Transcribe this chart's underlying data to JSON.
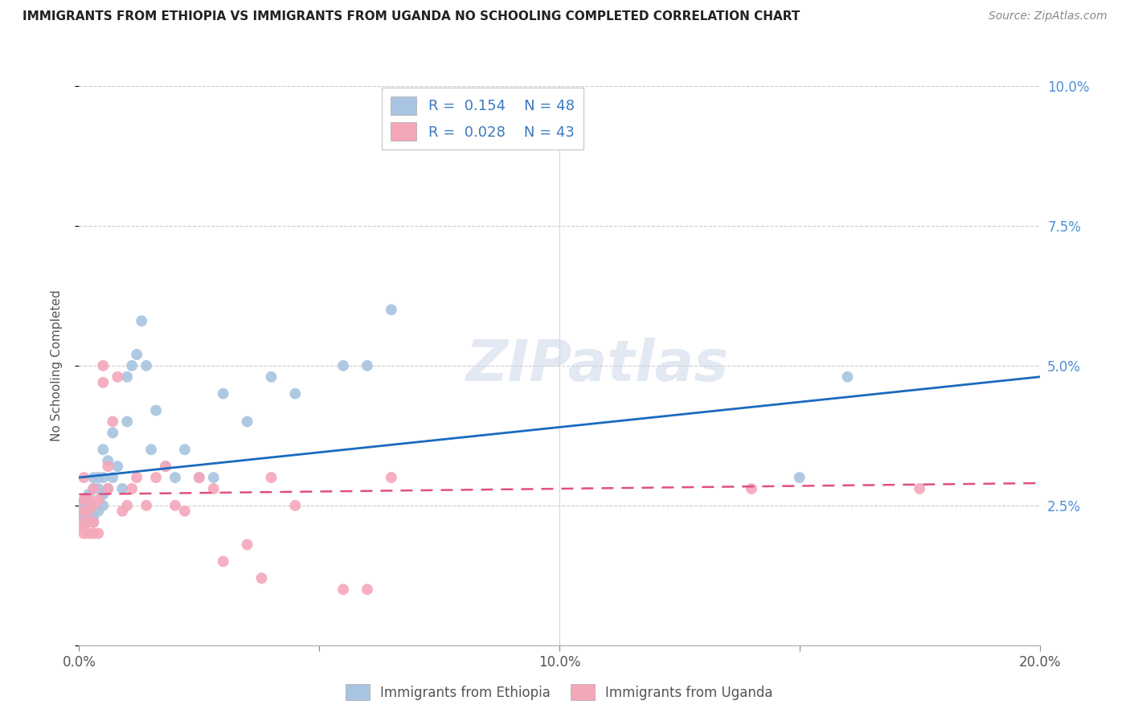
{
  "title": "IMMIGRANTS FROM ETHIOPIA VS IMMIGRANTS FROM UGANDA NO SCHOOLING COMPLETED CORRELATION CHART",
  "source": "Source: ZipAtlas.com",
  "ylabel": "No Schooling Completed",
  "xlim": [
    0.0,
    0.2
  ],
  "ylim": [
    0.0,
    0.1
  ],
  "xticks": [
    0.0,
    0.05,
    0.1,
    0.15,
    0.2
  ],
  "yticks": [
    0.0,
    0.025,
    0.05,
    0.075,
    0.1
  ],
  "xticklabels": [
    "0.0%",
    "",
    "10.0%",
    "",
    "20.0%"
  ],
  "yticklabels": [
    "",
    "2.5%",
    "5.0%",
    "7.5%",
    "10.0%"
  ],
  "ethiopia_R": 0.154,
  "ethiopia_N": 48,
  "uganda_R": 0.028,
  "uganda_N": 43,
  "ethiopia_color": "#a8c4e0",
  "uganda_color": "#f4a7b9",
  "ethiopia_line_color": "#1a6bbf",
  "uganda_line_color": "#e05080",
  "legend_ethiopia": "Immigrants from Ethiopia",
  "legend_uganda": "Immigrants from Uganda",
  "watermark": "ZIPatlas",
  "ethiopia_x": [
    0.001,
    0.001,
    0.001,
    0.001,
    0.001,
    0.002,
    0.002,
    0.002,
    0.002,
    0.003,
    0.003,
    0.003,
    0.003,
    0.004,
    0.004,
    0.004,
    0.005,
    0.005,
    0.005,
    0.005,
    0.006,
    0.006,
    0.007,
    0.007,
    0.008,
    0.009,
    0.01,
    0.01,
    0.011,
    0.012,
    0.013,
    0.014,
    0.015,
    0.016,
    0.018,
    0.02,
    0.022,
    0.025,
    0.028,
    0.03,
    0.035,
    0.04,
    0.045,
    0.055,
    0.06,
    0.065,
    0.15,
    0.16
  ],
  "ethiopia_y": [
    0.023,
    0.023,
    0.024,
    0.025,
    0.026,
    0.022,
    0.023,
    0.025,
    0.027,
    0.022,
    0.023,
    0.03,
    0.028,
    0.024,
    0.028,
    0.03,
    0.025,
    0.027,
    0.03,
    0.035,
    0.028,
    0.033,
    0.03,
    0.038,
    0.032,
    0.028,
    0.04,
    0.048,
    0.05,
    0.052,
    0.058,
    0.05,
    0.035,
    0.042,
    0.032,
    0.03,
    0.035,
    0.03,
    0.03,
    0.045,
    0.04,
    0.048,
    0.045,
    0.05,
    0.05,
    0.06,
    0.03,
    0.048
  ],
  "uganda_x": [
    0.001,
    0.001,
    0.001,
    0.001,
    0.001,
    0.001,
    0.002,
    0.002,
    0.002,
    0.002,
    0.003,
    0.003,
    0.003,
    0.003,
    0.004,
    0.004,
    0.005,
    0.005,
    0.006,
    0.006,
    0.007,
    0.008,
    0.009,
    0.01,
    0.011,
    0.012,
    0.014,
    0.016,
    0.018,
    0.02,
    0.022,
    0.025,
    0.028,
    0.03,
    0.035,
    0.038,
    0.04,
    0.045,
    0.055,
    0.06,
    0.065,
    0.14,
    0.175
  ],
  "uganda_y": [
    0.02,
    0.021,
    0.022,
    0.024,
    0.026,
    0.03,
    0.02,
    0.022,
    0.024,
    0.026,
    0.02,
    0.022,
    0.025,
    0.028,
    0.02,
    0.026,
    0.047,
    0.05,
    0.028,
    0.032,
    0.04,
    0.048,
    0.024,
    0.025,
    0.028,
    0.03,
    0.025,
    0.03,
    0.032,
    0.025,
    0.024,
    0.03,
    0.028,
    0.015,
    0.018,
    0.012,
    0.03,
    0.025,
    0.01,
    0.01,
    0.03,
    0.028,
    0.028
  ]
}
